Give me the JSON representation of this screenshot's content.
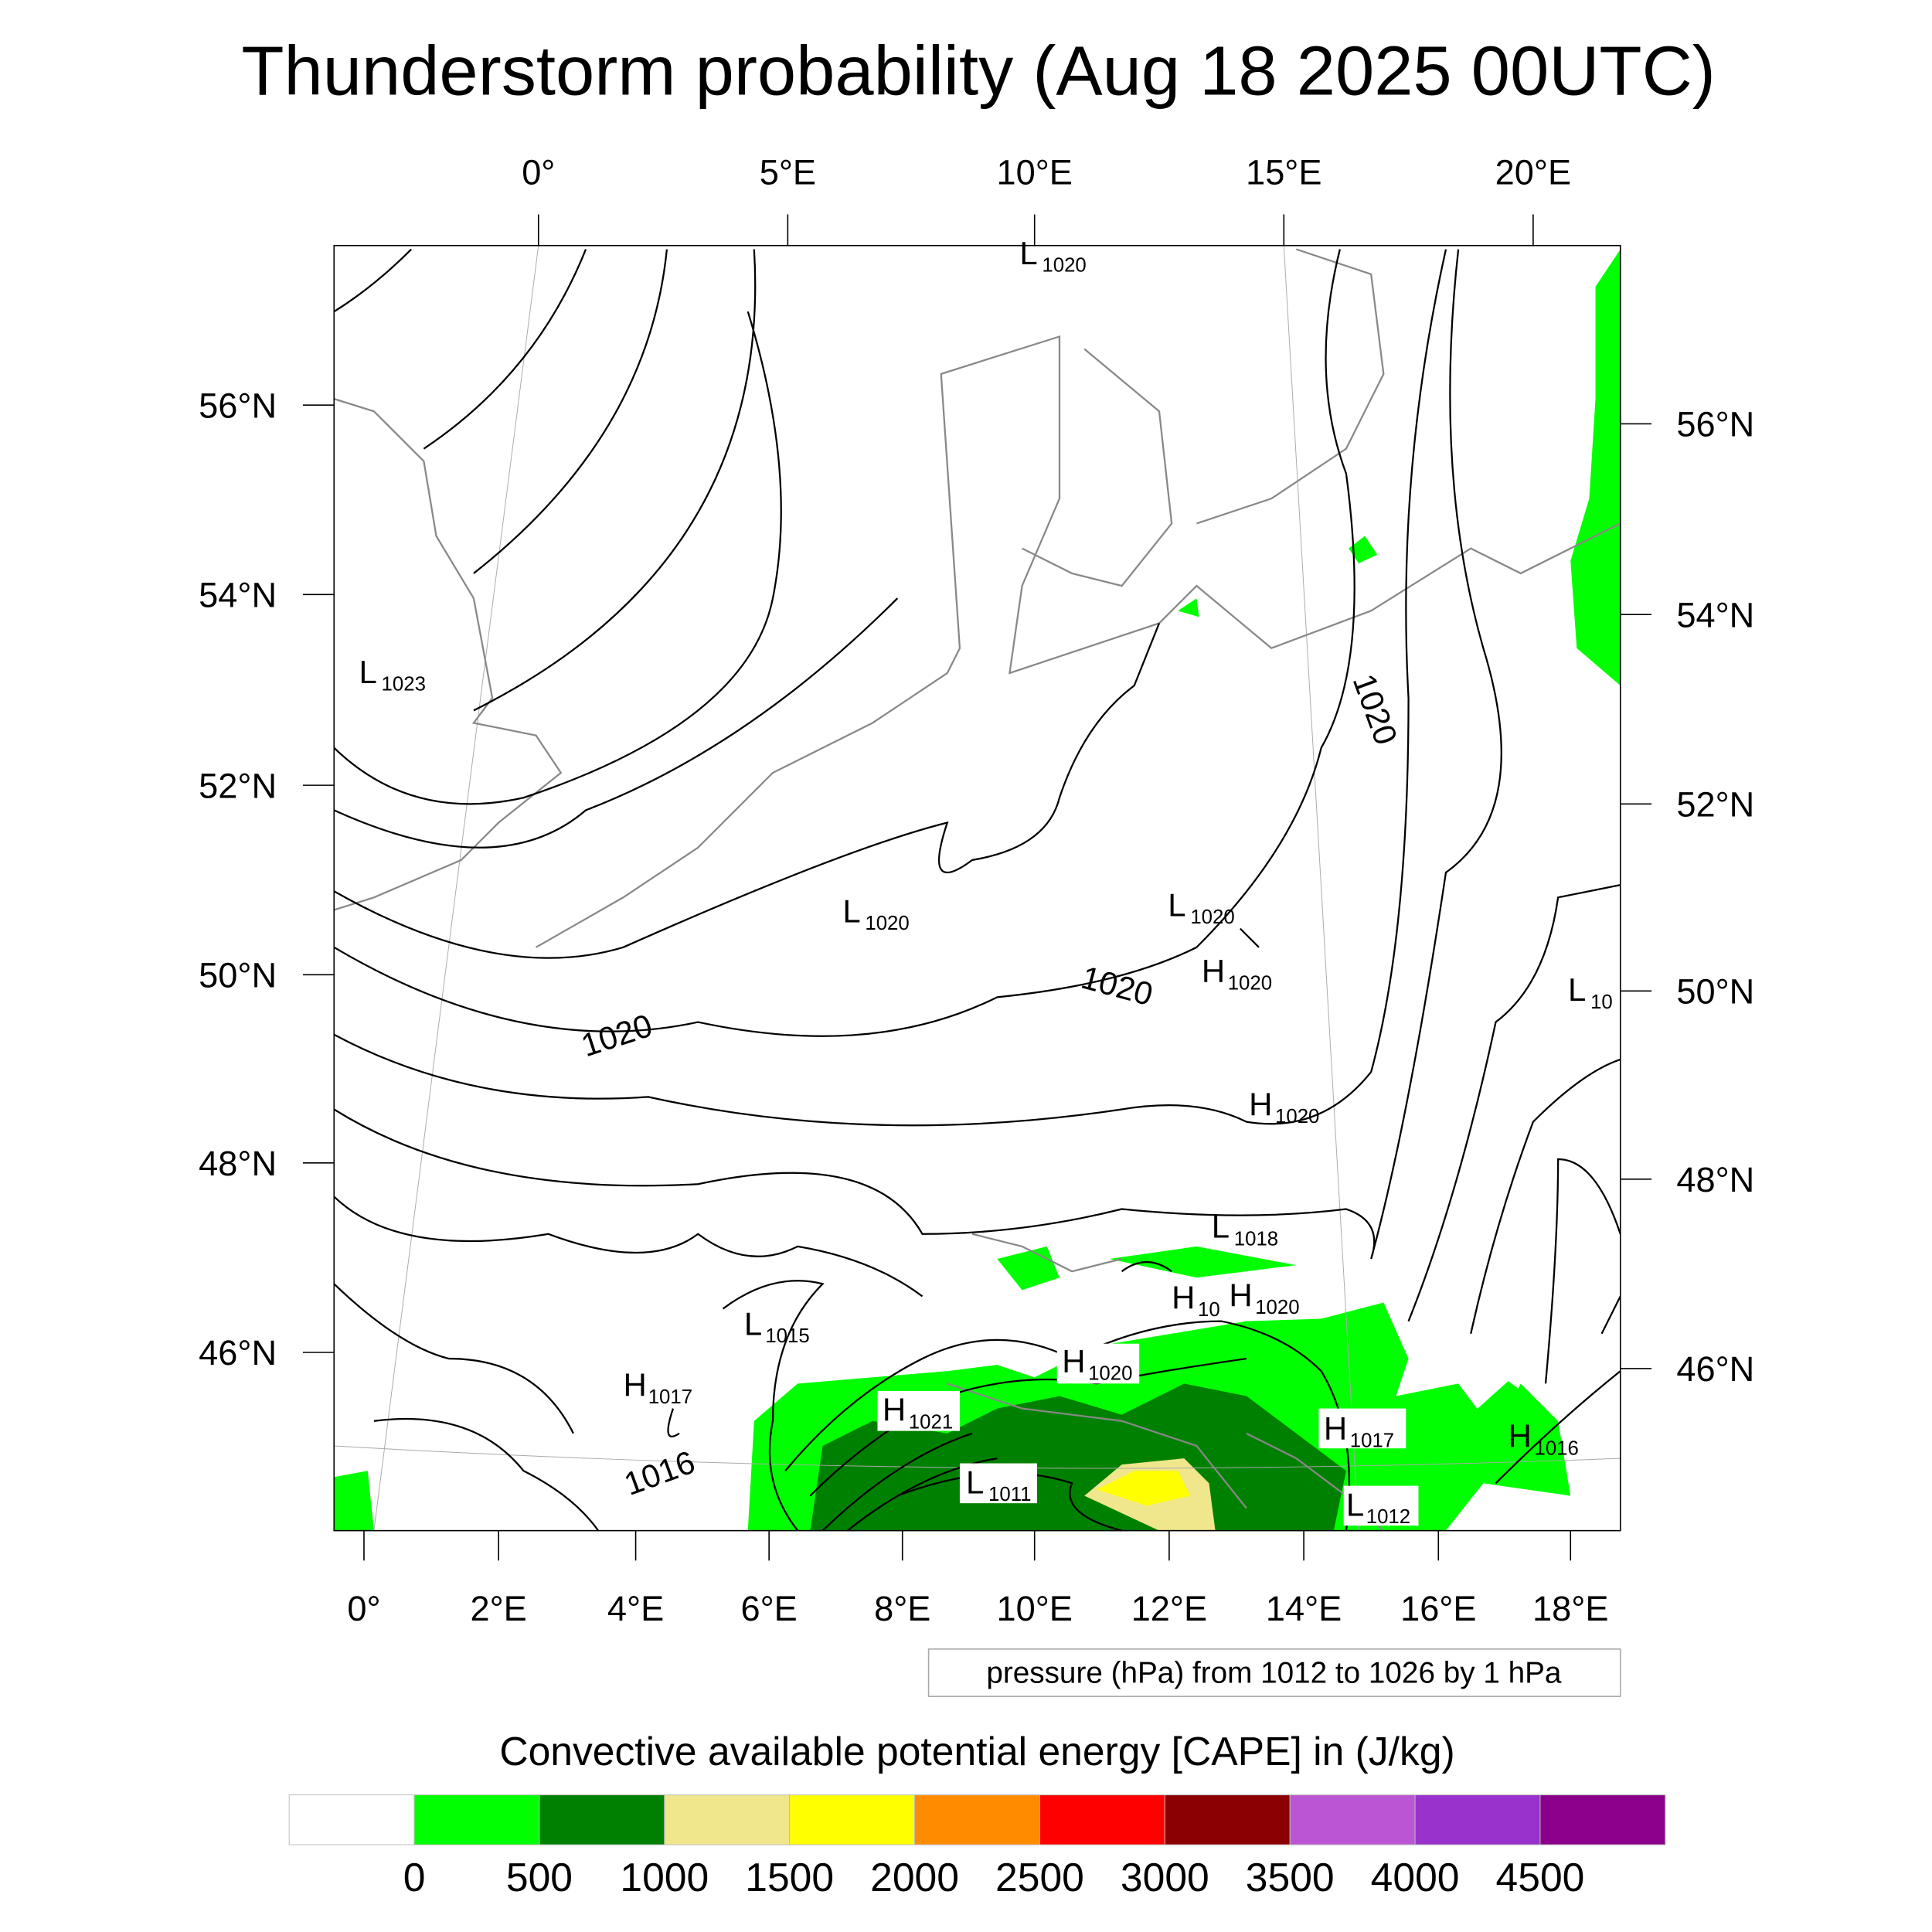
{
  "title": "Thunderstorm probability (Aug 18 2025 00UTC)",
  "axes": {
    "top": [
      "0°",
      "5°E",
      "10°E",
      "15°E",
      "20°E"
    ],
    "bottom": [
      "0°",
      "2°E",
      "4°E",
      "6°E",
      "8°E",
      "10°E",
      "12°E",
      "14°E",
      "16°E",
      "18°E"
    ],
    "left": [
      "56°N",
      "54°N",
      "52°N",
      "50°N",
      "48°N",
      "46°N"
    ],
    "right": [
      "56°N",
      "54°N",
      "52°N",
      "50°N",
      "48°N",
      "46°N"
    ]
  },
  "pressure_labels": [
    {
      "t": "L",
      "v": "1020"
    },
    {
      "t": "L",
      "v": "1023"
    },
    {
      "t": "L",
      "v": "1020"
    },
    {
      "t": "L",
      "v": "1020"
    },
    {
      "t": "H",
      "v": "1020"
    },
    {
      "t": "L",
      "v": "10"
    },
    {
      "t": "H",
      "v": "1020"
    },
    {
      "t": "L",
      "v": "1018"
    },
    {
      "t": "H",
      "v": "10"
    },
    {
      "t": "H",
      "v": "1020"
    },
    {
      "t": "L",
      "v": "1015"
    },
    {
      "t": "H",
      "v": "1017"
    },
    {
      "t": "H",
      "v": "1020"
    },
    {
      "t": "H",
      "v": "1021"
    },
    {
      "t": "L",
      "v": "1011"
    },
    {
      "t": "H",
      "v": "1017"
    },
    {
      "t": "H",
      "v": "1016"
    },
    {
      "t": "L",
      "v": "1012"
    }
  ],
  "contour_labels": [
    "1020",
    "1020",
    "1020",
    "1020",
    "1016"
  ],
  "contour_legend": "pressure (hPa) from 1012 to 1026 by 1 hPa",
  "colorbar": {
    "title": "Convective available potential energy [CAPE] in (J/kg)",
    "colors": [
      "#ffffff",
      "#00ff00",
      "#008000",
      "#f0e68c",
      "#ffff00",
      "#ff8c00",
      "#ff0000",
      "#8b0000",
      "#ba55d3",
      "#9932cc",
      "#8b008b"
    ],
    "labels": [
      "0",
      "500",
      "1000",
      "1500",
      "2000",
      "2500",
      "3000",
      "3500",
      "4000",
      "4500"
    ]
  }
}
